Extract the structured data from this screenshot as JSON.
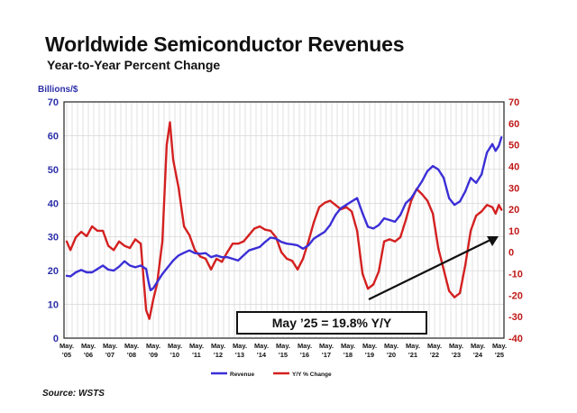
{
  "header": {
    "title": "Worldwide Semiconductor Revenues",
    "subtitle": "Year-to-Year Percent Change"
  },
  "source": "Source: WSTS",
  "colors": {
    "revenue": "#3b2fd6",
    "yoy": "#d42020",
    "left_axis": "#2b2fa8",
    "right_axis": "#c01818",
    "arrow": "#111111"
  },
  "chart_data": {
    "type": "line",
    "title": "Worldwide Semiconductor Revenues",
    "subtitle": "Year-to-Year Percent Change",
    "y_left_label": "Billions/$",
    "ylim_left": [
      0,
      70
    ],
    "ylim_right": [
      -40,
      70
    ],
    "y_left_ticks": [
      "0",
      "10",
      "20",
      "30",
      "40",
      "50",
      "60",
      "70"
    ],
    "y_right_ticks": [
      "-40",
      "-30",
      "-20",
      "-10",
      "0",
      "10",
      "20",
      "30",
      "40",
      "50",
      "60",
      "70"
    ],
    "x_tick_labels": [
      {
        "month": "May.",
        "year": "'05"
      },
      {
        "month": "May.",
        "year": "'06"
      },
      {
        "month": "May.",
        "year": "'07"
      },
      {
        "month": "May.",
        "year": "'08"
      },
      {
        "month": "May.",
        "year": "'09"
      },
      {
        "month": "May.",
        "year": "'10"
      },
      {
        "month": "May.",
        "year": "'11"
      },
      {
        "month": "May.",
        "year": "'12"
      },
      {
        "month": "May.",
        "year": "'13"
      },
      {
        "month": "May.",
        "year": "'14"
      },
      {
        "month": "May.",
        "year": "'15"
      },
      {
        "month": "May.",
        "year": "'16"
      },
      {
        "month": "May.",
        "year": "'17"
      },
      {
        "month": "May.",
        "year": "'18"
      },
      {
        "month": "May.",
        "year": "'19"
      },
      {
        "month": "May.",
        "year": "'20"
      },
      {
        "month": "May.",
        "year": "'21"
      },
      {
        "month": "May.",
        "year": "'22"
      },
      {
        "month": "May.",
        "year": "'23"
      },
      {
        "month": "May.",
        "year": "'24"
      },
      {
        "month": "May.",
        "year": "'25"
      }
    ],
    "grid": true,
    "legend": "bottom-center",
    "annotation": "May ’25 = 19.8% Y/Y",
    "series": [
      {
        "name": "Revenue",
        "axis": "left",
        "points": [
          [
            2005.33,
            18.5
          ],
          [
            2005.5,
            18.3
          ],
          [
            2005.75,
            19.5
          ],
          [
            2006.0,
            20.2
          ],
          [
            2006.25,
            19.5
          ],
          [
            2006.5,
            19.5
          ],
          [
            2006.75,
            20.5
          ],
          [
            2007.0,
            21.5
          ],
          [
            2007.25,
            20.3
          ],
          [
            2007.5,
            20.0
          ],
          [
            2007.75,
            21.2
          ],
          [
            2008.0,
            22.8
          ],
          [
            2008.25,
            21.5
          ],
          [
            2008.5,
            21.0
          ],
          [
            2008.75,
            21.5
          ],
          [
            2009.0,
            20.5
          ],
          [
            2009.1,
            17.0
          ],
          [
            2009.2,
            14.2
          ],
          [
            2009.33,
            14.8
          ],
          [
            2009.5,
            16.5
          ],
          [
            2009.75,
            19.0
          ],
          [
            2010.0,
            21.0
          ],
          [
            2010.25,
            23.0
          ],
          [
            2010.5,
            24.5
          ],
          [
            2010.75,
            25.3
          ],
          [
            2011.0,
            26.0
          ],
          [
            2011.25,
            25.2
          ],
          [
            2011.5,
            25.0
          ],
          [
            2011.75,
            25.2
          ],
          [
            2012.0,
            24.0
          ],
          [
            2012.25,
            24.5
          ],
          [
            2012.5,
            24.0
          ],
          [
            2012.75,
            24.0
          ],
          [
            2013.0,
            23.5
          ],
          [
            2013.25,
            23.0
          ],
          [
            2013.5,
            24.5
          ],
          [
            2013.75,
            26.0
          ],
          [
            2014.0,
            26.5
          ],
          [
            2014.25,
            27.0
          ],
          [
            2014.5,
            28.5
          ],
          [
            2014.75,
            29.8
          ],
          [
            2015.0,
            29.5
          ],
          [
            2015.25,
            28.5
          ],
          [
            2015.5,
            28.0
          ],
          [
            2015.75,
            27.8
          ],
          [
            2016.0,
            27.5
          ],
          [
            2016.25,
            26.5
          ],
          [
            2016.5,
            27.5
          ],
          [
            2016.75,
            29.5
          ],
          [
            2017.0,
            30.5
          ],
          [
            2017.25,
            31.5
          ],
          [
            2017.5,
            33.5
          ],
          [
            2017.75,
            36.5
          ],
          [
            2018.0,
            38.5
          ],
          [
            2018.25,
            39.5
          ],
          [
            2018.5,
            40.5
          ],
          [
            2018.75,
            41.5
          ],
          [
            2019.0,
            37.0
          ],
          [
            2019.25,
            33.0
          ],
          [
            2019.5,
            32.5
          ],
          [
            2019.75,
            33.5
          ],
          [
            2020.0,
            35.5
          ],
          [
            2020.25,
            35.0
          ],
          [
            2020.5,
            34.5
          ],
          [
            2020.75,
            36.5
          ],
          [
            2021.0,
            40.0
          ],
          [
            2021.25,
            41.5
          ],
          [
            2021.5,
            44.0
          ],
          [
            2021.75,
            46.5
          ],
          [
            2022.0,
            49.5
          ],
          [
            2022.25,
            51.0
          ],
          [
            2022.5,
            50.0
          ],
          [
            2022.75,
            47.5
          ],
          [
            2023.0,
            41.5
          ],
          [
            2023.25,
            39.5
          ],
          [
            2023.5,
            40.5
          ],
          [
            2023.75,
            43.5
          ],
          [
            2024.0,
            47.5
          ],
          [
            2024.25,
            46.0
          ],
          [
            2024.5,
            48.5
          ],
          [
            2024.75,
            55.0
          ],
          [
            2025.0,
            57.5
          ],
          [
            2025.15,
            55.5
          ],
          [
            2025.3,
            57.0
          ],
          [
            2025.42,
            59.5
          ]
        ]
      },
      {
        "name": "Y/Y % Change",
        "axis": "right",
        "points": [
          [
            2005.33,
            5.0
          ],
          [
            2005.5,
            1.0
          ],
          [
            2005.75,
            7.0
          ],
          [
            2006.0,
            9.5
          ],
          [
            2006.25,
            7.5
          ],
          [
            2006.5,
            12.0
          ],
          [
            2006.75,
            10.0
          ],
          [
            2007.0,
            10.0
          ],
          [
            2007.25,
            3.0
          ],
          [
            2007.5,
            1.0
          ],
          [
            2007.75,
            5.0
          ],
          [
            2008.0,
            3.0
          ],
          [
            2008.25,
            2.0
          ],
          [
            2008.5,
            6.0
          ],
          [
            2008.75,
            4.0
          ],
          [
            2009.0,
            -27.0
          ],
          [
            2009.15,
            -31.0
          ],
          [
            2009.33,
            -22.0
          ],
          [
            2009.5,
            -15.0
          ],
          [
            2009.75,
            5.0
          ],
          [
            2009.95,
            50.0
          ],
          [
            2010.1,
            60.5
          ],
          [
            2010.25,
            43.0
          ],
          [
            2010.5,
            30.0
          ],
          [
            2010.75,
            12.0
          ],
          [
            2011.0,
            8.0
          ],
          [
            2011.25,
            1.0
          ],
          [
            2011.5,
            -2.0
          ],
          [
            2011.75,
            -3.0
          ],
          [
            2012.0,
            -8.0
          ],
          [
            2012.25,
            -3.0
          ],
          [
            2012.5,
            -4.5
          ],
          [
            2012.75,
            0.0
          ],
          [
            2013.0,
            4.0
          ],
          [
            2013.25,
            4.0
          ],
          [
            2013.5,
            5.0
          ],
          [
            2013.75,
            8.0
          ],
          [
            2014.0,
            11.0
          ],
          [
            2014.25,
            12.0
          ],
          [
            2014.5,
            10.5
          ],
          [
            2014.75,
            10.0
          ],
          [
            2015.0,
            7.0
          ],
          [
            2015.25,
            0.0
          ],
          [
            2015.5,
            -3.0
          ],
          [
            2015.75,
            -4.0
          ],
          [
            2016.0,
            -8.0
          ],
          [
            2016.25,
            -3.0
          ],
          [
            2016.5,
            5.0
          ],
          [
            2016.75,
            14.0
          ],
          [
            2017.0,
            21.0
          ],
          [
            2017.25,
            23.0
          ],
          [
            2017.5,
            24.0
          ],
          [
            2017.75,
            22.0
          ],
          [
            2018.0,
            20.0
          ],
          [
            2018.25,
            21.0
          ],
          [
            2018.5,
            19.0
          ],
          [
            2018.75,
            10.0
          ],
          [
            2019.0,
            -10.0
          ],
          [
            2019.25,
            -17.0
          ],
          [
            2019.5,
            -15.0
          ],
          [
            2019.75,
            -9.0
          ],
          [
            2020.0,
            5.0
          ],
          [
            2020.25,
            6.0
          ],
          [
            2020.5,
            5.0
          ],
          [
            2020.75,
            7.0
          ],
          [
            2021.0,
            15.0
          ],
          [
            2021.25,
            24.0
          ],
          [
            2021.5,
            29.5
          ],
          [
            2021.75,
            27.0
          ],
          [
            2022.0,
            24.0
          ],
          [
            2022.25,
            18.0
          ],
          [
            2022.5,
            2.0
          ],
          [
            2022.75,
            -8.0
          ],
          [
            2023.0,
            -18.0
          ],
          [
            2023.25,
            -21.0
          ],
          [
            2023.5,
            -19.0
          ],
          [
            2023.75,
            -6.0
          ],
          [
            2024.0,
            10.0
          ],
          [
            2024.25,
            17.0
          ],
          [
            2024.5,
            19.0
          ],
          [
            2024.75,
            22.0
          ],
          [
            2025.0,
            21.0
          ],
          [
            2025.15,
            18.0
          ],
          [
            2025.3,
            22.0
          ],
          [
            2025.42,
            19.8
          ]
        ]
      }
    ]
  }
}
